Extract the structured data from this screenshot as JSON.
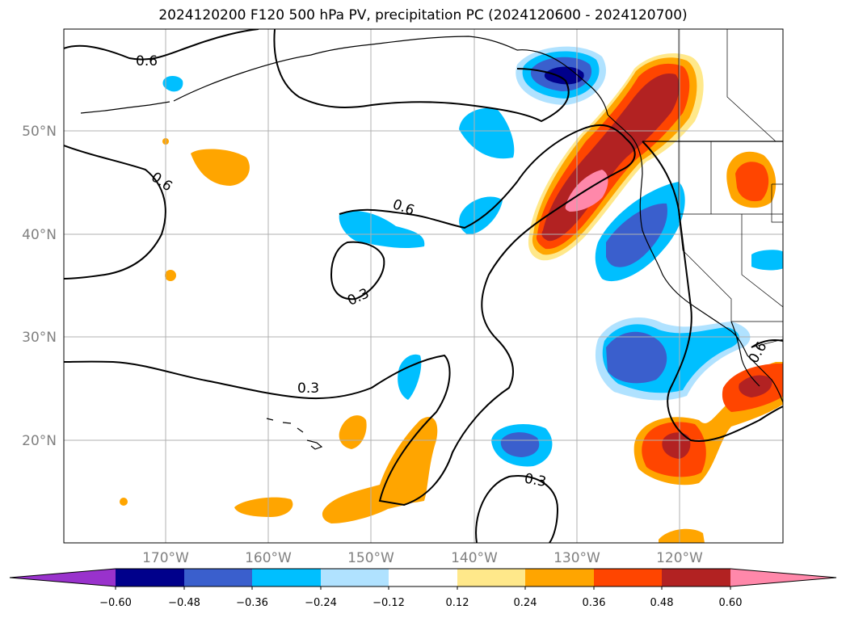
{
  "title": "2024120200 F120 500 hPa PV, precipitation PC (2024120600 - 2024120700)",
  "map": {
    "lat_labels": [
      "50°N",
      "40°N",
      "30°N",
      "20°N"
    ],
    "lon_labels": [
      "170°W",
      "160°W",
      "150°W",
      "140°W",
      "130°W",
      "120°W"
    ],
    "contour_labels": [
      "0.6",
      "0.6",
      "0.6",
      "0.3",
      "0.3",
      "0.3",
      "0.6"
    ]
  },
  "colorbar": {
    "ticks": [
      "−0.60",
      "−0.48",
      "−0.36",
      "−0.24",
      "−0.12",
      "0.12",
      "0.24",
      "0.36",
      "0.48",
      "0.60"
    ],
    "colors": [
      "#9932cc",
      "#00008b",
      "#3a5fcd",
      "#00bfff",
      "#b0e2ff",
      "#ffffff",
      "#ffe88a",
      "#ffa500",
      "#ff4500",
      "#b22222",
      "#ff88aa"
    ]
  },
  "fill_colors": {
    "neg_1": "#b0e2ff",
    "neg_2": "#00bfff",
    "neg_3": "#3a5fcd",
    "neg_4": "#00008b",
    "pos_1": "#ffe88a",
    "pos_2": "#ffa500",
    "pos_3": "#ff4500",
    "pos_4": "#b22222",
    "pos_5": "#ff88aa"
  }
}
